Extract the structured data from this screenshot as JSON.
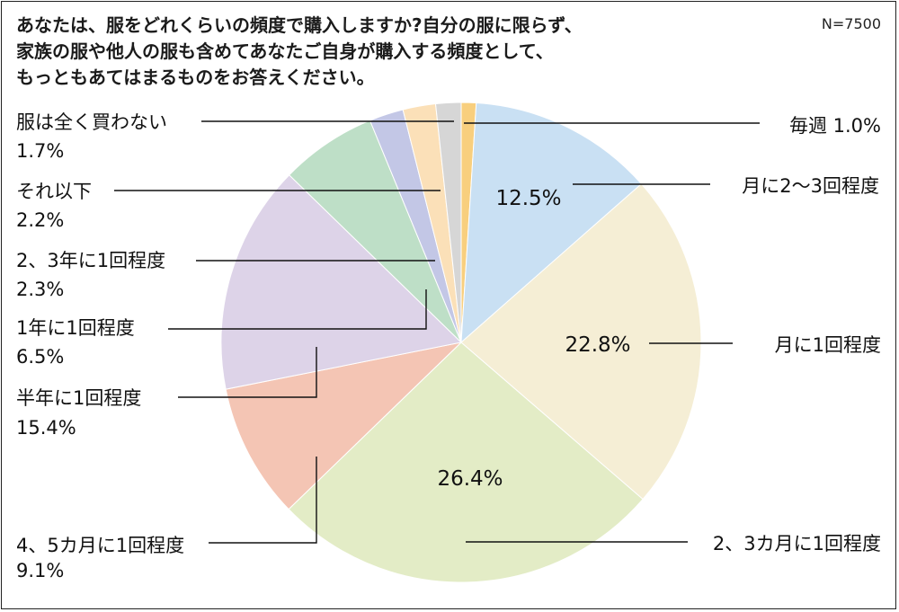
{
  "title_lines": [
    "あなたは、服をどれくらいの頻度で購入しますか?自分の服に限らず、",
    "家族の服や他人の服も含めてあなたご自身が購入する頻度として、",
    "もっともあてはまるものをお答えください。"
  ],
  "sample_size": "N=7500",
  "chart_data": {
    "type": "pie",
    "start_angle": "12 o'clock",
    "direction": "clockwise",
    "slices": [
      {
        "label": "毎週",
        "value": 1.0,
        "value_text": "1.0%",
        "color": "#f8cf7e"
      },
      {
        "label": "月に2～3回程度",
        "value": 12.5,
        "value_text": "12.5%",
        "color": "#c9e0f3"
      },
      {
        "label": "月に1回程度",
        "value": 22.8,
        "value_text": "22.8%",
        "color": "#f5eed5"
      },
      {
        "label": "2、3カ月に1回程度",
        "value": 26.4,
        "value_text": "26.4%",
        "color": "#e3ecc6"
      },
      {
        "label": "4、5カ月に1回程度",
        "value": 9.1,
        "value_text": "9.1%",
        "color": "#f4c5b4"
      },
      {
        "label": "半年に1回程度",
        "value": 15.4,
        "value_text": "15.4%",
        "color": "#ddd3e8"
      },
      {
        "label": "1年に1回程度",
        "value": 6.5,
        "value_text": "6.5%",
        "color": "#bedfc7"
      },
      {
        "label": "2、3年に1回程度",
        "value": 2.3,
        "value_text": "2.3%",
        "color": "#c3c7e6"
      },
      {
        "label": "それ以下",
        "value": 2.2,
        "value_text": "2.2%",
        "color": "#fbe0b8"
      },
      {
        "label": "服は全く買わない",
        "value": 1.7,
        "value_text": "1.7%",
        "color": "#d6d6d6"
      }
    ]
  }
}
